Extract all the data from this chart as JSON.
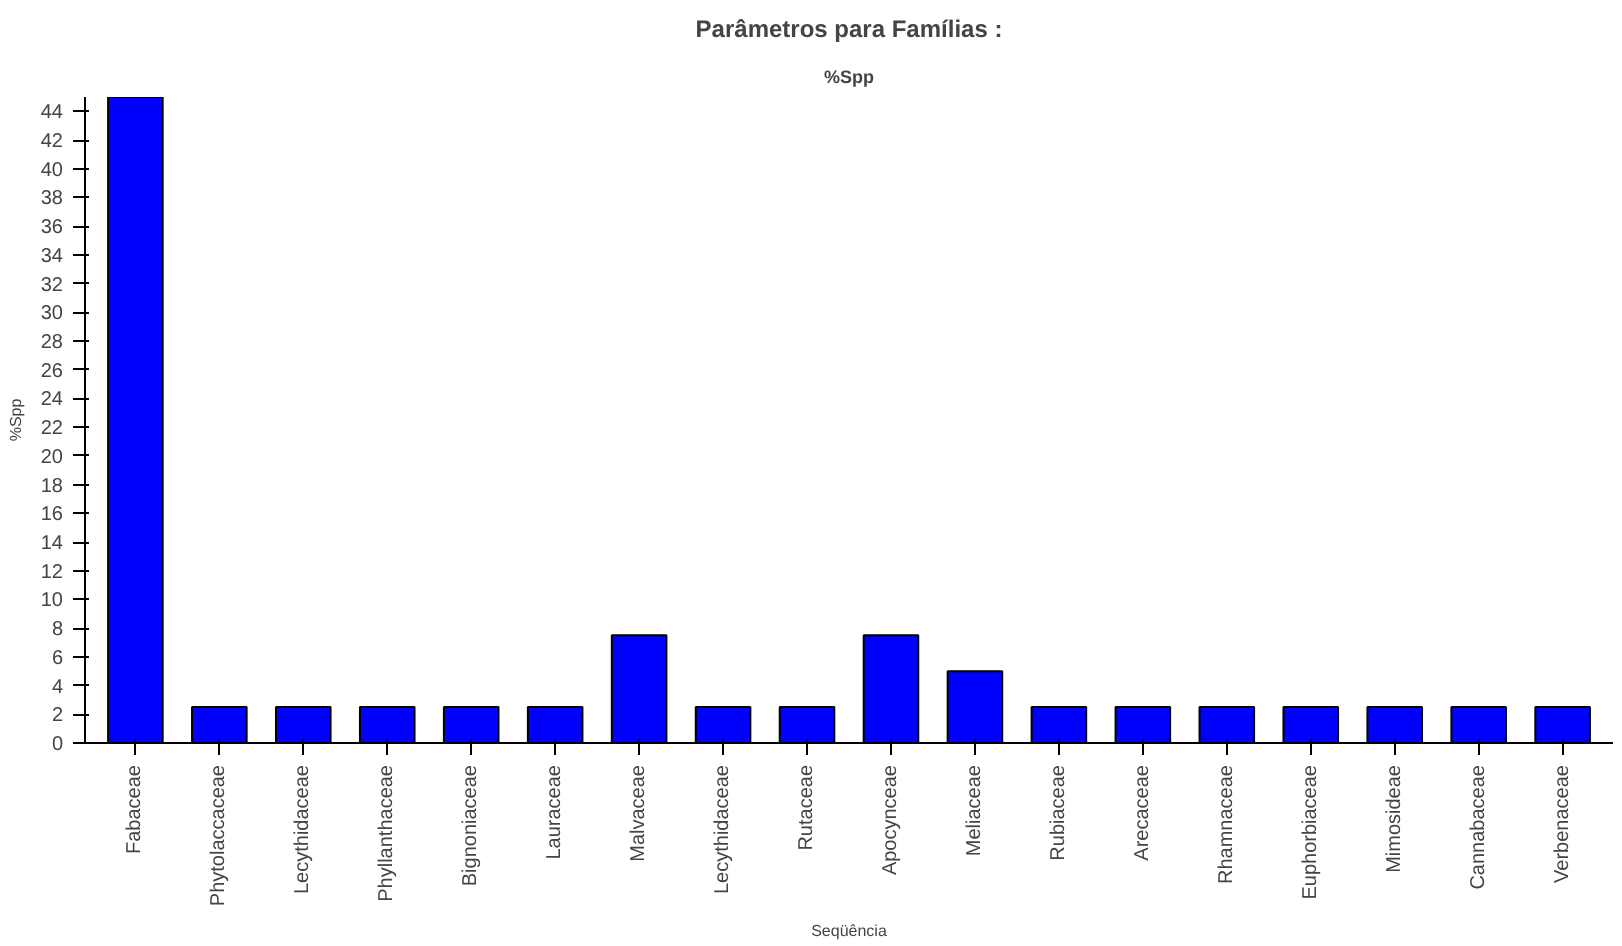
{
  "chart_data": {
    "type": "bar",
    "title": "Parâmetros para Famílias :",
    "subtitle": "%Spp",
    "xlabel": "Seqüência",
    "ylabel": "%Spp",
    "categories": [
      "Fabaceae",
      "Phytolaccaceae",
      "Lecythidaceae",
      "Phyllanthaceae",
      "Bignoniaceae",
      "Lauraceae",
      "Malvaceae",
      "Lecythidaceae",
      "Rutaceae",
      "Apocynceae",
      "Meliaceae",
      "Rubiaceae",
      "Arecaceae",
      "Rhamnaceae",
      "Euphorbiaceae",
      "Mimosideae",
      "Cannabaceae",
      "Verbenaceae"
    ],
    "values": [
      45,
      2.5,
      2.5,
      2.5,
      2.5,
      2.5,
      7.5,
      2.5,
      2.5,
      7.5,
      5,
      2.5,
      2.5,
      2.5,
      2.5,
      2.5,
      2.5,
      2.5
    ],
    "color": "#0000ff",
    "ylim": [
      0,
      45
    ],
    "yticks": [
      0,
      2,
      4,
      6,
      8,
      10,
      12,
      14,
      16,
      18,
      20,
      22,
      24,
      26,
      28,
      30,
      32,
      34,
      36,
      38,
      40,
      42,
      44
    ],
    "grid": false
  }
}
